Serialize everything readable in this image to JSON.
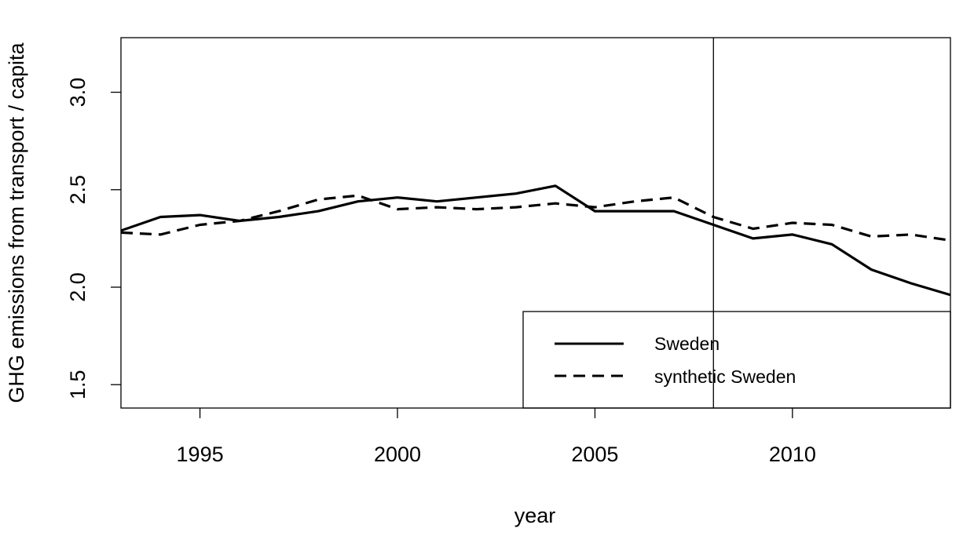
{
  "chart_data": {
    "type": "line",
    "xlabel": "year",
    "ylabel": "GHG emissions from transport / capita",
    "xlim": [
      1993,
      2014
    ],
    "ylim": [
      1.38,
      3.28
    ],
    "x_ticks": [
      1995,
      2000,
      2005,
      2010
    ],
    "y_ticks": [
      1.5,
      2.0,
      2.5,
      3.0
    ],
    "y_tick_labels": [
      "1.5",
      "2.0",
      "2.5",
      "3.0"
    ],
    "vertical_line_x": 2008,
    "grid": false,
    "legend_position": "bottom-right",
    "x": [
      1993,
      1994,
      1995,
      1996,
      1997,
      1998,
      1999,
      2000,
      2001,
      2002,
      2003,
      2004,
      2005,
      2006,
      2007,
      2008,
      2009,
      2010,
      2011,
      2012,
      2013,
      2014
    ],
    "series": [
      {
        "name": "Sweden",
        "line_style": "solid",
        "color": "#000000",
        "values": [
          2.29,
          2.36,
          2.37,
          2.34,
          2.36,
          2.39,
          2.44,
          2.46,
          2.44,
          2.46,
          2.48,
          2.52,
          2.39,
          2.39,
          2.39,
          2.32,
          2.25,
          2.27,
          2.22,
          2.09,
          2.02,
          1.96
        ]
      },
      {
        "name": "synthetic Sweden",
        "line_style": "dashed",
        "color": "#000000",
        "values": [
          2.28,
          2.27,
          2.32,
          2.34,
          2.39,
          2.45,
          2.47,
          2.4,
          2.41,
          2.4,
          2.41,
          2.43,
          2.41,
          2.44,
          2.46,
          2.36,
          2.3,
          2.33,
          2.32,
          2.26,
          2.27,
          2.24
        ]
      }
    ]
  }
}
